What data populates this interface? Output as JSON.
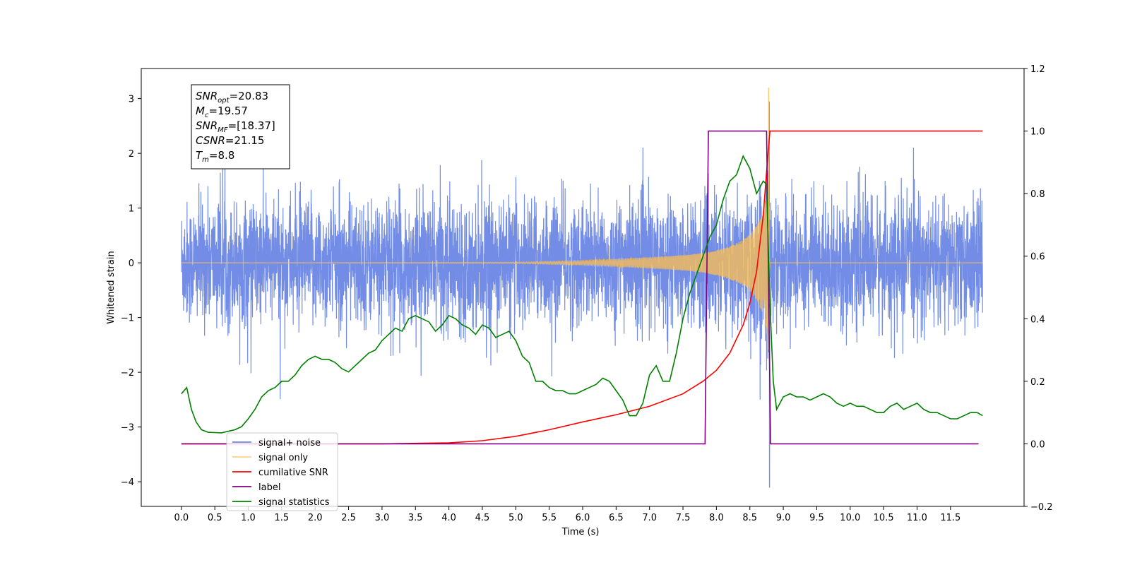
{
  "chart_data": {
    "type": "line",
    "xlabel": "Time (s)",
    "ylabel": "Whitened strain",
    "xlim": [
      -0.6,
      12.6
    ],
    "ylim": [
      -4.45,
      3.55
    ],
    "y2lim": [
      -0.2,
      1.2
    ],
    "x_ticks": [
      "0.0",
      "0.5",
      "1.0",
      "1.5",
      "2.0",
      "2.5",
      "3.0",
      "3.5",
      "4.0",
      "4.5",
      "5.0",
      "5.5",
      "6.0",
      "6.5",
      "7.0",
      "7.5",
      "8.0",
      "8.5",
      "9.0",
      "9.5",
      "10.0",
      "10.5",
      "11.0",
      "11.5"
    ],
    "y_ticks": [
      "3",
      "2",
      "1",
      "0",
      "−1",
      "−2",
      "−3",
      "−4"
    ],
    "y2_ticks": [
      "1.2",
      "1.0",
      "0.8",
      "0.6",
      "0.4",
      "0.2",
      "0.0",
      "−0.2"
    ],
    "grid": false,
    "legend_position": "bottom-left",
    "annotation": {
      "lines": [
        {
          "main": "SNR",
          "sub": "opt",
          "value": "=20.83"
        },
        {
          "main": "M",
          "sub": "c",
          "value": "=19.57"
        },
        {
          "main": "SNR",
          "sub": "MF",
          "value": "=[18.37]"
        },
        {
          "main": "CSNR",
          "sub": "",
          "value": "=21.15"
        },
        {
          "main": "T",
          "sub": "m",
          "value": "=8.8"
        }
      ]
    },
    "series": [
      {
        "name": "signal+ noise",
        "color": "#6b87e5",
        "axis": "left",
        "description_values": {
          "x_range": [
            0.0,
            11.98
          ],
          "typical_amplitude": [
            -1.3,
            1.3
          ],
          "max_peak": {
            "x": 8.79,
            "y": 2.95
          },
          "min_peak": {
            "x": 8.79,
            "y": -4.1
          }
        }
      },
      {
        "name": "signal only",
        "color": "#ffc04d",
        "axis": "left",
        "chirp": {
          "x": [
            0.0,
            5.0,
            6.0,
            6.5,
            7.0,
            7.5,
            7.8,
            8.0,
            8.2,
            8.4,
            8.5,
            8.6,
            8.7,
            8.75,
            8.78,
            8.8
          ],
          "envelope": [
            0.0,
            0.01,
            0.04,
            0.07,
            0.1,
            0.14,
            0.18,
            0.23,
            0.3,
            0.42,
            0.52,
            0.68,
            0.95,
            1.25,
            1.7,
            0.0
          ],
          "peak": {
            "x": 8.78,
            "y": 3.2
          }
        }
      },
      {
        "name": "cumilative SNR",
        "color": "#ff0000",
        "axis": "right",
        "x": [
          0.0,
          3.0,
          4.0,
          4.5,
          5.0,
          5.5,
          6.0,
          6.5,
          7.0,
          7.5,
          7.8,
          8.0,
          8.2,
          8.4,
          8.5,
          8.6,
          8.7,
          8.75,
          8.8,
          8.81,
          11.98
        ],
        "values": [
          0.0,
          0.0,
          0.003,
          0.01,
          0.024,
          0.045,
          0.07,
          0.093,
          0.12,
          0.16,
          0.2,
          0.235,
          0.29,
          0.38,
          0.45,
          0.55,
          0.73,
          0.87,
          1.0,
          1.0,
          1.0
        ]
      },
      {
        "name": "label",
        "color": "#800080",
        "axis": "right",
        "x": [
          0.0,
          7.83,
          7.88,
          8.75,
          8.81,
          11.92
        ],
        "values": [
          0.0,
          0.0,
          1.0,
          1.0,
          0.0,
          0.0
        ]
      },
      {
        "name": "signal statistics",
        "color": "#008000",
        "axis": "right",
        "x": [
          0.0,
          0.08,
          0.15,
          0.22,
          0.3,
          0.4,
          0.5,
          0.6,
          0.7,
          0.8,
          0.9,
          1.0,
          1.1,
          1.2,
          1.3,
          1.4,
          1.5,
          1.6,
          1.7,
          1.8,
          1.9,
          2.0,
          2.1,
          2.2,
          2.3,
          2.4,
          2.5,
          2.6,
          2.7,
          2.8,
          2.9,
          3.0,
          3.1,
          3.2,
          3.3,
          3.4,
          3.5,
          3.6,
          3.7,
          3.8,
          3.9,
          4.0,
          4.1,
          4.2,
          4.3,
          4.4,
          4.5,
          4.6,
          4.7,
          4.8,
          4.9,
          5.0,
          5.1,
          5.2,
          5.3,
          5.4,
          5.5,
          5.6,
          5.7,
          5.8,
          5.9,
          6.0,
          6.1,
          6.2,
          6.3,
          6.4,
          6.5,
          6.6,
          6.7,
          6.8,
          6.9,
          7.0,
          7.1,
          7.2,
          7.3,
          7.4,
          7.5,
          7.6,
          7.7,
          7.8,
          7.9,
          8.0,
          8.1,
          8.2,
          8.3,
          8.4,
          8.5,
          8.6,
          8.7,
          8.75,
          8.8,
          8.85,
          8.9,
          9.0,
          9.1,
          9.2,
          9.3,
          9.4,
          9.5,
          9.6,
          9.7,
          9.8,
          9.9,
          10.0,
          10.1,
          10.2,
          10.3,
          10.4,
          10.5,
          10.6,
          10.7,
          10.8,
          10.9,
          11.0,
          11.1,
          11.2,
          11.3,
          11.4,
          11.5,
          11.6,
          11.7,
          11.8,
          11.9,
          11.98
        ],
        "values": [
          0.16,
          0.18,
          0.11,
          0.07,
          0.045,
          0.037,
          0.036,
          0.035,
          0.04,
          0.045,
          0.055,
          0.08,
          0.11,
          0.15,
          0.17,
          0.18,
          0.2,
          0.2,
          0.22,
          0.25,
          0.27,
          0.28,
          0.27,
          0.27,
          0.26,
          0.24,
          0.23,
          0.25,
          0.27,
          0.29,
          0.3,
          0.33,
          0.35,
          0.37,
          0.36,
          0.4,
          0.41,
          0.4,
          0.39,
          0.36,
          0.38,
          0.41,
          0.4,
          0.38,
          0.37,
          0.35,
          0.38,
          0.37,
          0.34,
          0.35,
          0.36,
          0.33,
          0.28,
          0.26,
          0.2,
          0.2,
          0.18,
          0.17,
          0.17,
          0.16,
          0.16,
          0.17,
          0.18,
          0.19,
          0.21,
          0.2,
          0.17,
          0.14,
          0.09,
          0.09,
          0.13,
          0.22,
          0.25,
          0.2,
          0.2,
          0.29,
          0.4,
          0.48,
          0.54,
          0.6,
          0.66,
          0.7,
          0.78,
          0.84,
          0.86,
          0.92,
          0.88,
          0.8,
          0.84,
          0.83,
          0.45,
          0.2,
          0.11,
          0.15,
          0.16,
          0.15,
          0.15,
          0.14,
          0.15,
          0.16,
          0.15,
          0.13,
          0.12,
          0.13,
          0.12,
          0.12,
          0.11,
          0.1,
          0.1,
          0.12,
          0.13,
          0.11,
          0.12,
          0.13,
          0.11,
          0.1,
          0.1,
          0.09,
          0.08,
          0.08,
          0.09,
          0.1,
          0.1,
          0.09
        ]
      }
    ]
  }
}
